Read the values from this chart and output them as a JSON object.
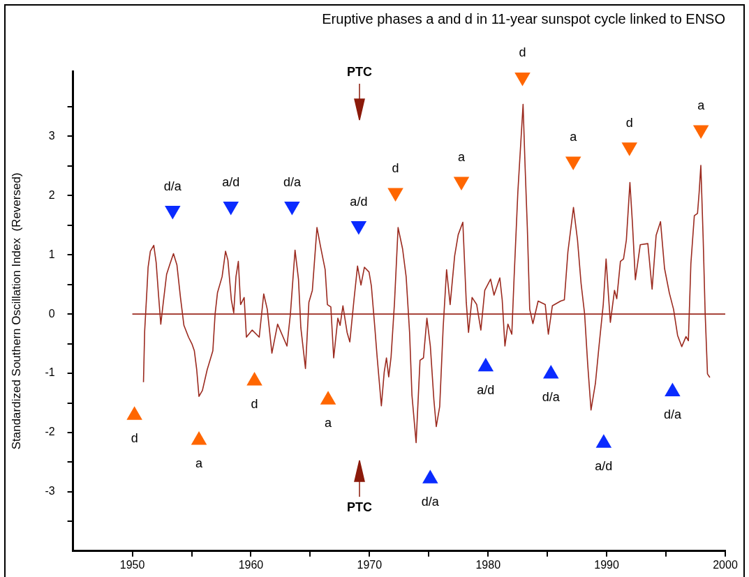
{
  "chart_data": {
    "type": "line",
    "title": "Eruptive phases a and d in 11-year sunspot cycle linked to ENSO",
    "ylabel": "Standardized Southern Oscillation Index  (Reversed)",
    "xlim": [
      1945,
      2000
    ],
    "ylim": [
      -4,
      4.1
    ],
    "xticks": [
      1950,
      {
        "value": 1955,
        "label": null
      },
      1960,
      {
        "value": 1965,
        "label": null
      },
      1970,
      {
        "value": 1975,
        "label": null
      },
      1980,
      {
        "value": 1985,
        "label": null
      },
      1990,
      {
        "value": 1995,
        "label": null
      },
      2000
    ],
    "yticks": [
      {
        "value": -3.5,
        "label": null
      },
      -3,
      {
        "value": -2.5,
        "label": null
      },
      -2,
      {
        "value": -1.5,
        "label": null
      },
      -1,
      {
        "value": -0.5,
        "label": null
      },
      0,
      {
        "value": 0.5,
        "label": null
      },
      1,
      {
        "value": 1.5,
        "label": null
      },
      2,
      {
        "value": 2.5,
        "label": null
      },
      3,
      {
        "value": 3.5,
        "label": null
      }
    ],
    "grid": false,
    "legend": false,
    "series": [
      {
        "color": "#9b2a1f",
        "marker": "none",
        "line_style": "solid",
        "x": [
          1950,
          2000
        ],
        "values": [
          0,
          0
        ]
      },
      {
        "color": "#9b2a1f",
        "marker": "none",
        "line_style": "solid",
        "x": [
          1950.94,
          1951.04,
          1951.23,
          1951.33,
          1951.52,
          1951.81,
          1952.01,
          1952.21,
          1952.4,
          1952.59,
          1952.89,
          1953.18,
          1953.47,
          1953.76,
          1954.06,
          1954.35,
          1954.74,
          1955.04,
          1955.23,
          1955.43,
          1955.62,
          1955.91,
          1956.31,
          1956.79,
          1956.98,
          1957.18,
          1957.57,
          1957.86,
          1958.06,
          1958.35,
          1958.55,
          1958.74,
          1958.94,
          1959.13,
          1959.43,
          1959.62,
          1960.11,
          1960.7,
          1961.08,
          1961.38,
          1961.77,
          1962.25,
          1963.04,
          1963.33,
          1963.72,
          1964.01,
          1964.21,
          1964.6,
          1964.89,
          1965.18,
          1965.57,
          1965.87,
          1966.26,
          1966.45,
          1966.74,
          1966.98,
          1967.33,
          1967.52,
          1967.76,
          1968.11,
          1968.34,
          1968.69,
          1968.99,
          1969.28,
          1969.57,
          1969.96,
          1970.16,
          1970.45,
          1970.65,
          1971.0,
          1971.24,
          1971.43,
          1971.62,
          1971.82,
          1972.11,
          1972.41,
          1972.79,
          1973.09,
          1973.38,
          1973.58,
          1973.93,
          1974.26,
          1974.55,
          1974.84,
          1975.13,
          1975.43,
          1975.63,
          1975.92,
          1976.21,
          1976.5,
          1976.8,
          1977.18,
          1977.48,
          1977.87,
          1978.16,
          1978.35,
          1978.65,
          1979.04,
          1979.39,
          1979.72,
          1980.21,
          1980.5,
          1980.99,
          1981.19,
          1981.42,
          1981.67,
          1982.0,
          1982.2,
          1982.51,
          1982.81,
          1982.95,
          1983.11,
          1983.31,
          1983.51,
          1983.78,
          1984.22,
          1984.82,
          1985.08,
          1985.42,
          1986.12,
          1986.43,
          1986.73,
          1987.2,
          1987.54,
          1987.84,
          1988.14,
          1988.4,
          1988.68,
          1989.05,
          1989.34,
          1989.71,
          1989.95,
          1990.15,
          1990.31,
          1990.66,
          1990.85,
          1991.16,
          1991.42,
          1991.66,
          1991.96,
          1992.17,
          1992.42,
          1992.83,
          1993.47,
          1993.83,
          1994.17,
          1994.54,
          1994.88,
          1995.28,
          1995.64,
          1995.98,
          1996.33,
          1996.69,
          1996.89,
          1997.1,
          1997.39,
          1997.66,
          1997.8,
          1997.94,
          1998.14,
          1998.3,
          1998.5,
          1998.7
        ],
        "values": [
          -1.15,
          -0.29,
          0.4,
          0.79,
          1.06,
          1.16,
          0.87,
          0.32,
          -0.17,
          0.16,
          0.67,
          0.85,
          1.02,
          0.83,
          0.28,
          -0.19,
          -0.39,
          -0.51,
          -0.62,
          -0.94,
          -1.39,
          -1.29,
          -0.94,
          -0.62,
          0,
          0.36,
          0.63,
          1.06,
          0.91,
          0.24,
          0.02,
          0.63,
          0.89,
          0.16,
          0.28,
          -0.39,
          -0.27,
          -0.39,
          0.34,
          0.08,
          -0.66,
          -0.17,
          -0.54,
          0,
          1.08,
          0.59,
          -0.23,
          -0.92,
          0.2,
          0.4,
          1.46,
          1.14,
          0.75,
          0.16,
          0.12,
          -0.74,
          -0.07,
          -0.19,
          0.14,
          -0.31,
          -0.47,
          0.24,
          0.81,
          0.49,
          0.79,
          0.71,
          0.47,
          -0.23,
          -0.74,
          -1.55,
          -0.98,
          -0.74,
          -1.06,
          -0.72,
          0.2,
          1.46,
          1.1,
          0.63,
          -0.31,
          -1.37,
          -2.17,
          -0.78,
          -0.74,
          -0.07,
          -0.54,
          -1.45,
          -1.9,
          -1.56,
          -0.23,
          0.75,
          0.16,
          0.98,
          1.34,
          1.55,
          0.2,
          -0.31,
          0.28,
          0.16,
          -0.27,
          0.4,
          0.59,
          0.32,
          0.61,
          0.24,
          -0.54,
          -0.17,
          -0.34,
          0.65,
          2.06,
          3.07,
          3.54,
          2.55,
          1.45,
          0.08,
          -0.16,
          0.22,
          0.16,
          -0.34,
          0.14,
          0.22,
          0.24,
          1.05,
          1.8,
          1.25,
          0.52,
          0,
          -0.85,
          -1.62,
          -1.17,
          -0.57,
          0.16,
          0.93,
          0.32,
          -0.14,
          0.4,
          0.26,
          0.89,
          0.93,
          1.25,
          2.22,
          1.54,
          0.58,
          1.17,
          1.19,
          0.42,
          1.33,
          1.56,
          0.77,
          0.36,
          0.08,
          -0.36,
          -0.55,
          -0.38,
          -0.45,
          0.85,
          1.66,
          1.7,
          2.06,
          2.51,
          1.25,
          0.04,
          -1.01,
          -1.07
        ]
      },
      {
        "type": "scatter",
        "color": "#ff6600",
        "marker": "triangle",
        "x": [
          1950.18,
          1955.62,
          1960.3,
          1966.51
        ],
        "values": [
          -1.71,
          -2.13,
          -1.13,
          -1.45
        ]
      },
      {
        "type": "scatter",
        "color": "#0a2bff",
        "marker": "triangle",
        "x": [
          1975.12,
          1979.8,
          1985.3,
          1989.75,
          1995.55
        ],
        "values": [
          -2.78,
          -0.89,
          -1.01,
          -2.18,
          -1.31
        ]
      },
      {
        "type": "scatter",
        "color": "#0a2bff",
        "marker": "triangle-down",
        "x": [
          1953.4,
          1958.31,
          1963.47,
          1969.09
        ],
        "values": [
          1.75,
          1.82,
          1.82,
          1.49
        ]
      },
      {
        "type": "scatter",
        "color": "#ff6600",
        "marker": "triangle-down",
        "x": [
          1972.19,
          1977.75,
          1982.9,
          1987.18,
          1991.92,
          1997.95
        ],
        "values": [
          2.05,
          2.24,
          4.0,
          2.58,
          2.82,
          3.11
        ]
      }
    ],
    "annotations": [
      {
        "text": "d",
        "x": 1950.18,
        "y": -1.71
      },
      {
        "text": "a",
        "x": 1955.62,
        "y": -2.13
      },
      {
        "text": "d",
        "x": 1960.3,
        "y": -1.13
      },
      {
        "text": "a",
        "x": 1966.51,
        "y": -1.45
      },
      {
        "text": "d/a",
        "x": 1975.12,
        "y": -2.78
      },
      {
        "text": "a/d",
        "x": 1979.8,
        "y": -0.89
      },
      {
        "text": "d/a",
        "x": 1985.3,
        "y": -1.01
      },
      {
        "text": "a/d",
        "x": 1989.75,
        "y": -2.18
      },
      {
        "text": "d/a",
        "x": 1995.55,
        "y": -1.31
      },
      {
        "text": "d/a",
        "x": 1953.4,
        "y": 1.75
      },
      {
        "text": "a/d",
        "x": 1958.31,
        "y": 1.82
      },
      {
        "text": "d/a",
        "x": 1963.47,
        "y": 1.82
      },
      {
        "text": "a/d",
        "x": 1969.09,
        "y": 1.49
      },
      {
        "text": "d",
        "x": 1972.19,
        "y": 2.05
      },
      {
        "text": "a",
        "x": 1977.75,
        "y": 2.24
      },
      {
        "text": "d",
        "x": 1982.9,
        "y": 4.0
      },
      {
        "text": "a",
        "x": 1987.18,
        "y": 2.58
      },
      {
        "text": "d",
        "x": 1991.92,
        "y": 2.82
      },
      {
        "text": "a",
        "x": 1997.95,
        "y": 3.11
      },
      "PTC",
      "PTC"
    ]
  }
}
